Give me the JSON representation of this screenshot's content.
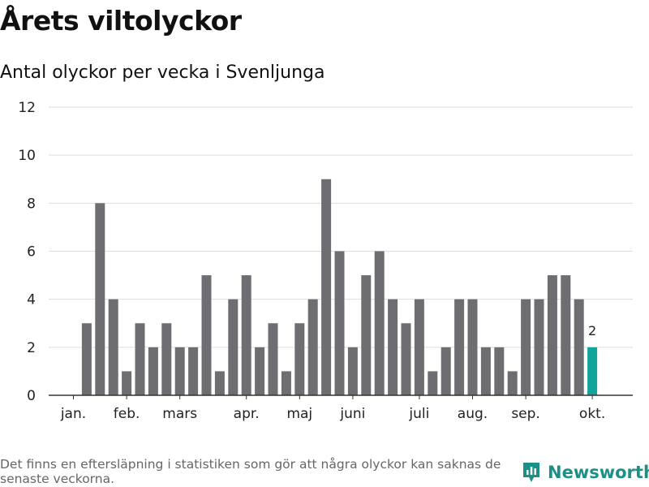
{
  "title": "Årets viltolyckor",
  "subtitle": "Antal olyckor per vecka i Svenljunga",
  "footnote": "Det finns en eftersläpning i statistiken som gör att några olyckor kan saknas de senaste veckorna.",
  "brand": {
    "name": "Newsworthy",
    "icon": "bar-chart-pin-icon"
  },
  "colors": {
    "bar": "#6e6d72",
    "highlight": "#12a39a",
    "grid": "#dddddd",
    "axis": "#333333",
    "brand": "#1d8f86"
  },
  "chart_data": {
    "type": "bar",
    "x": [
      1,
      2,
      3,
      4,
      5,
      6,
      7,
      8,
      9,
      10,
      11,
      12,
      13,
      14,
      15,
      16,
      17,
      18,
      19,
      20,
      21,
      22,
      23,
      24,
      25,
      26,
      27,
      28,
      29,
      30,
      31,
      32,
      33,
      34,
      35,
      36,
      37,
      38,
      39,
      40
    ],
    "values": [
      0,
      3,
      8,
      4,
      1,
      3,
      2,
      3,
      2,
      2,
      5,
      1,
      4,
      5,
      2,
      3,
      1,
      3,
      4,
      9,
      6,
      2,
      5,
      6,
      4,
      3,
      4,
      1,
      2,
      4,
      4,
      2,
      2,
      1,
      4,
      4,
      5,
      5,
      4,
      2
    ],
    "highlight_last": true,
    "highlight_label": "2",
    "ylim": [
      0,
      12
    ],
    "yticks": [
      0,
      2,
      4,
      6,
      8,
      10,
      12
    ],
    "month_ticks": [
      {
        "label": "jan.",
        "x": 1
      },
      {
        "label": "feb.",
        "x": 5
      },
      {
        "label": "mars",
        "x": 9
      },
      {
        "label": "apr.",
        "x": 14
      },
      {
        "label": "maj",
        "x": 18
      },
      {
        "label": "juni",
        "x": 22
      },
      {
        "label": "juli",
        "x": 27
      },
      {
        "label": "aug.",
        "x": 31
      },
      {
        "label": "sep.",
        "x": 35
      },
      {
        "label": "okt.",
        "x": 40
      }
    ],
    "grid": true
  }
}
